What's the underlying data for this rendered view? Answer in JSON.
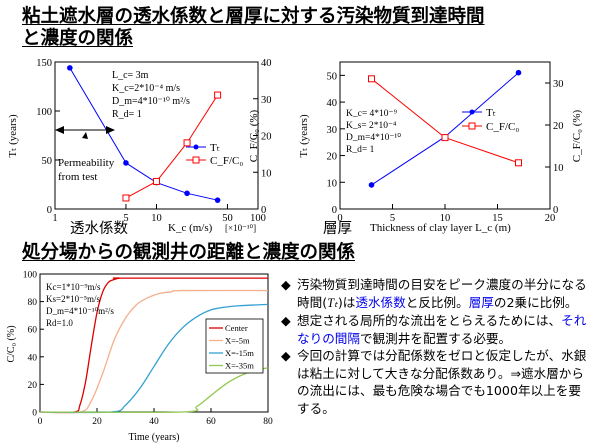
{
  "title_line1": "粘土遮水層の透水係数と層厚に対する汚染物質到達時間",
  "title_line2": "と濃度の関係",
  "section_title": "処分場からの観測井の距離と濃度の関係",
  "colors": {
    "blue": "#0000ff",
    "red": "#ff0000",
    "highlight": "#0000ee"
  },
  "charts": {
    "kc": {
      "tick_x": [
        "1",
        "5",
        "10",
        "50",
        "100"
      ],
      "x_exp": "[×10⁻¹⁰]",
      "tick_yl": [
        "0",
        "50",
        "100",
        "150"
      ],
      "tick_yr": [
        "0",
        "10",
        "20",
        "30",
        "40"
      ],
      "ylabel_left": "Tₜ (years)",
      "ylabel_right": "C_F/C₀ (%)",
      "xlabel": "K_c (m/s)",
      "jp_label": "透水係数",
      "params": [
        "L_c= 3m",
        "K_c=2*10⁻⁴ m/s",
        "D_m=4*10⁻¹⁰ m²/s",
        "R_d= 1"
      ],
      "annotation": [
        "Permeability",
        "from test"
      ],
      "legend": [
        "Tₜ",
        "C_F/C₀"
      ]
    },
    "lc": {
      "tick_x": [
        "0",
        "5",
        "10",
        "15",
        "20"
      ],
      "tick_yl": [
        "0",
        "10",
        "20",
        "30",
        "40",
        "50"
      ],
      "tick_yr": [
        "0",
        "10",
        "20",
        "30"
      ],
      "ylabel_left": "Tₜ (years)",
      "ylabel_right": "C_F/C₀ (%)",
      "xlabel": "Thickness of clay layer L_c (m)",
      "jp_label": "層厚",
      "params": [
        "K_c= 4*10⁻⁹",
        "K_s= 2*10⁻⁴",
        "D_m=4*10⁻¹⁰",
        "R_d= 1"
      ],
      "legend": [
        "Tₜ",
        "C_F/C₀"
      ]
    },
    "wells": {
      "tick_x": [
        "0",
        "20",
        "40",
        "60",
        "80"
      ],
      "tick_y": [
        "0",
        "20",
        "40",
        "60",
        "80",
        "100"
      ],
      "xlabel": "Time (years)",
      "ylabel": "C/C₀ (%)",
      "params": [
        "Kc=1*10⁻⁹m/s",
        "Ks=2*10⁻⁵m/s",
        "D_m=4*10⁻¹⁰m²/s",
        "Rd=1.0"
      ],
      "legend": [
        "Center",
        "X=-5m",
        "X=-15m",
        "X=-35m"
      ]
    }
  },
  "chart_data": [
    {
      "type": "line",
      "xscale": "log",
      "xlim": [
        1,
        100
      ],
      "ylim_left": [
        0,
        150
      ],
      "ylim_right": [
        0,
        40
      ],
      "series": [
        {
          "name": "Tₜ",
          "axis": "left",
          "x": [
            1.4,
            5,
            10,
            20,
            40
          ],
          "y": [
            144,
            47,
            27,
            16,
            9
          ]
        },
        {
          "name": "C_F/C₀",
          "axis": "right",
          "x": [
            5,
            10,
            20,
            40
          ],
          "y": [
            3,
            7.5,
            18,
            31
          ]
        }
      ]
    },
    {
      "type": "line",
      "xlim": [
        0,
        20
      ],
      "ylim_left": [
        0,
        55
      ],
      "ylim_right": [
        0,
        35
      ],
      "series": [
        {
          "name": "Tₜ",
          "axis": "left",
          "x": [
            3,
            10,
            17
          ],
          "y": [
            9,
            27,
            51
          ]
        },
        {
          "name": "C_F/C₀",
          "axis": "right",
          "x": [
            3,
            10,
            17
          ],
          "y": [
            31,
            17,
            11
          ]
        }
      ]
    },
    {
      "type": "line",
      "xlim": [
        0,
        80
      ],
      "ylim": [
        0,
        100
      ],
      "series": [
        {
          "name": "Center",
          "x": [
            0,
            12,
            14,
            16,
            18,
            20,
            22,
            24,
            26,
            28,
            30,
            80
          ],
          "y": [
            0,
            0,
            5,
            22,
            48,
            72,
            87,
            94,
            96,
            97,
            97,
            97
          ]
        },
        {
          "name": "X=-5m",
          "x": [
            0,
            14,
            18,
            22,
            26,
            30,
            34,
            38,
            42,
            46,
            50,
            80
          ],
          "y": [
            0,
            0,
            8,
            28,
            52,
            68,
            78,
            83,
            86,
            87,
            88,
            88
          ]
        },
        {
          "name": "X=-15m",
          "x": [
            0,
            25,
            30,
            35,
            40,
            45,
            50,
            55,
            60,
            65,
            70,
            80
          ],
          "y": [
            0,
            0,
            5,
            17,
            33,
            49,
            61,
            69,
            74,
            76,
            77,
            78
          ]
        },
        {
          "name": "X=-35m",
          "x": [
            0,
            50,
            55,
            60,
            65,
            70,
            75,
            80
          ],
          "y": [
            0,
            0,
            4,
            12,
            20,
            26,
            30,
            32
          ]
        }
      ]
    }
  ],
  "bullets": [
    {
      "parts": [
        {
          "t": "汚染物質到達時間の目安をピーク濃度の半分になる時間("
        },
        {
          "t": "Tₜ"
        },
        {
          "t": ")は"
        },
        {
          "t": "透水係数",
          "c": "blue"
        },
        {
          "t": "と反比例。"
        },
        {
          "t": "層厚",
          "c": "blue"
        },
        {
          "t": "の2乗に比例。"
        }
      ]
    },
    {
      "parts": [
        {
          "t": "想定される局所的な流出をとらえるためには、"
        },
        {
          "t": "それなりの間隔",
          "c": "blue"
        },
        {
          "t": "で観測井を配置する必要。"
        }
      ]
    },
    {
      "parts": [
        {
          "t": "今回の計算では分配係数をゼロと仮定したが、水銀は粘土に対して大きな分配係数あり。⇒遮水層からの流出には、最も危険な場合でも1000年以上を要する。"
        }
      ]
    }
  ],
  "bullet_mark": "◆"
}
